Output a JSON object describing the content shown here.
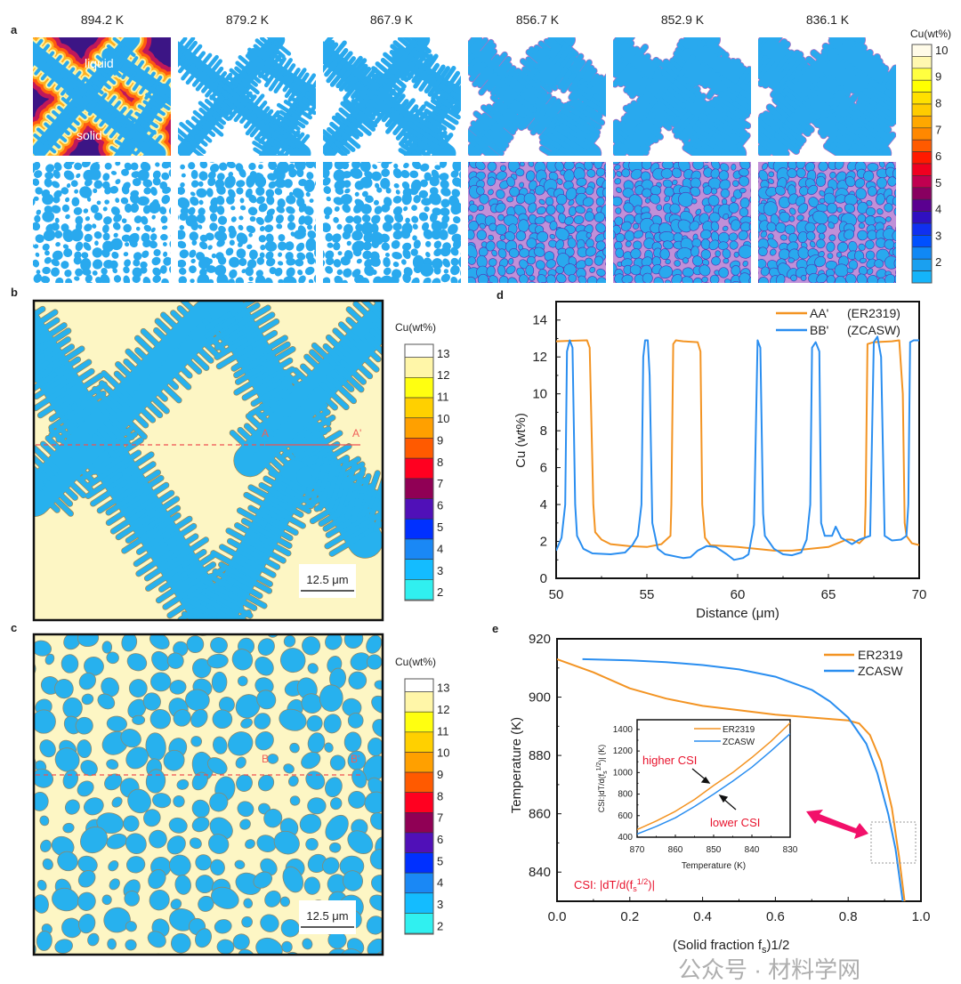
{
  "panel_labels": {
    "a": "a",
    "b": "b",
    "c": "c",
    "d": "d",
    "e": "e"
  },
  "panel_a": {
    "temperatures": [
      "894.2 K",
      "879.2 K",
      "867.9 K",
      "856.7 K",
      "852.9 K",
      "836.1 K"
    ],
    "liquid_label": "liquid",
    "solid_label": "solid",
    "colorbar": {
      "title": "Cu(wt%)",
      "labels": [
        "10",
        "9",
        "8",
        "7",
        "6",
        "5",
        "4",
        "3",
        "2"
      ]
    }
  },
  "panel_b": {
    "line_start": "A",
    "line_end": "A'",
    "scale_bar": "12.5 μm",
    "colorbar": {
      "title": "Cu(wt%)",
      "labels": [
        "13",
        "12",
        "11",
        "10",
        "9",
        "8",
        "7",
        "6",
        "5",
        "4",
        "3",
        "2"
      ]
    }
  },
  "panel_c": {
    "line_start": "B",
    "line_end": "B'",
    "scale_bar": "12.5 μm",
    "colorbar": {
      "title": "Cu(wt%)",
      "labels": [
        "13",
        "12",
        "11",
        "10",
        "9",
        "8",
        "7",
        "6",
        "5",
        "4",
        "3",
        "2"
      ]
    }
  },
  "colors": {
    "er2319": "#f39423",
    "zcasw": "#2a8ef0",
    "annotation": "#e8132d",
    "arrow": "#f2106a"
  },
  "chart_data": [
    {
      "type": "line",
      "panel": "d",
      "xlabel": "Distance (μm)",
      "ylabel": "Cu (wt%)",
      "xlim": [
        50,
        70
      ],
      "ylim": [
        0,
        15
      ],
      "xticks": [
        "50",
        "55",
        "60",
        "65",
        "70"
      ],
      "yticks": [
        "0",
        "2",
        "4",
        "6",
        "8",
        "10",
        "12",
        "14"
      ],
      "legend_position": "top-right",
      "series": [
        {
          "name": "AA'",
          "note": "(ER2319)",
          "color": "#f39423",
          "x": [
            50,
            51.7,
            51.85,
            52.05,
            52.15,
            52.5,
            53,
            54,
            55,
            55.8,
            56.3,
            56.35,
            56.45,
            56.6,
            57,
            57.8,
            57.95,
            58.05,
            58.2,
            58.5,
            60,
            62,
            63,
            65,
            66,
            66.3,
            66.7,
            67,
            67.05,
            67.15,
            67.5,
            68.5,
            68.9,
            69.1,
            69.2,
            69.3,
            69.6,
            70
          ],
          "y": [
            12.85,
            12.9,
            12.5,
            4,
            2.5,
            2.1,
            1.85,
            1.75,
            1.7,
            1.85,
            2.3,
            4,
            12.7,
            12.9,
            12.85,
            12.8,
            12.3,
            4,
            2.2,
            1.8,
            1.7,
            1.5,
            1.5,
            1.7,
            2.1,
            2.1,
            1.9,
            2.2,
            4,
            12.7,
            12.8,
            12.85,
            12.9,
            10,
            3,
            2.3,
            1.9,
            1.8
          ]
        },
        {
          "name": "BB'",
          "note": "(ZCASW)",
          "color": "#2a8ef0",
          "x": [
            50,
            50.3,
            50.5,
            50.6,
            50.75,
            50.9,
            51.05,
            51.15,
            51.5,
            52,
            53,
            53.8,
            54.2,
            54.5,
            54.7,
            54.8,
            54.9,
            55.05,
            55.15,
            55.3,
            55.6,
            56,
            57,
            57.4,
            57.8,
            58.3,
            58.8,
            59.4,
            59.8,
            60.3,
            60.6,
            60.9,
            61.1,
            61.25,
            61.4,
            61.5,
            62,
            62.5,
            63,
            63.5,
            63.8,
            64,
            64.1,
            64.3,
            64.5,
            64.6,
            64.8,
            65.2,
            65.4,
            65.7,
            66.3,
            66.7,
            67.3,
            67.5,
            67.7,
            67.9,
            68.1,
            68.5,
            69,
            69.3,
            69.4,
            69.5,
            69.7,
            70
          ],
          "y": [
            1.5,
            2.2,
            4,
            12.3,
            12.9,
            12.5,
            4,
            2.3,
            1.6,
            1.35,
            1.3,
            1.4,
            1.8,
            2.3,
            4,
            12,
            12.9,
            12.9,
            11,
            3,
            1.6,
            1.3,
            1.1,
            1.15,
            1.5,
            1.75,
            1.7,
            1.3,
            1.0,
            1.1,
            1.3,
            2.9,
            12.9,
            12.5,
            3.5,
            2.3,
            1.6,
            1.3,
            1.25,
            1.4,
            2.1,
            4,
            12.5,
            12.8,
            12.3,
            3,
            2.3,
            2.3,
            2.8,
            2.2,
            1.85,
            2.1,
            2.3,
            12.8,
            13.1,
            12,
            2.3,
            2.05,
            2.1,
            2.3,
            4,
            12.8,
            12.9,
            12.9
          ]
        }
      ]
    },
    {
      "type": "line",
      "panel": "e",
      "xlabel": "(Solid fraction f",
      "xlabel_sub": "s",
      "xlabel_sup": ")1/2",
      "ylabel": "Temperature (K)",
      "xlim": [
        0,
        1
      ],
      "ylim": [
        830,
        920
      ],
      "xticks": [
        "0.0",
        "0.2",
        "0.4",
        "0.6",
        "0.8",
        "1.0"
      ],
      "yticks": [
        "840",
        "860",
        "880",
        "900",
        "920"
      ],
      "legend_position": "top-right",
      "annotation": "CSI: |dT/d(f",
      "annotation_sub": "s",
      "annotation_sup": "1/2",
      "annotation_end": ")|",
      "series": [
        {
          "name": "ER2319",
          "color": "#f39423",
          "x": [
            0,
            0.1,
            0.2,
            0.3,
            0.4,
            0.5,
            0.6,
            0.7,
            0.8,
            0.83,
            0.86,
            0.89,
            0.92,
            0.94,
            0.955
          ],
          "y": [
            913,
            908.5,
            903,
            899.5,
            897,
            895.5,
            894,
            893,
            892,
            891,
            887,
            878,
            862,
            845,
            830
          ]
        },
        {
          "name": "ZCASW",
          "color": "#2a8ef0",
          "x": [
            0.07,
            0.2,
            0.3,
            0.4,
            0.5,
            0.6,
            0.7,
            0.75,
            0.8,
            0.85,
            0.88,
            0.91,
            0.93,
            0.95
          ],
          "y": [
            913,
            912.6,
            912,
            911,
            909.5,
            907,
            902.5,
            898.5,
            893,
            884,
            874,
            860,
            848,
            830
          ]
        }
      ]
    },
    {
      "type": "line",
      "panel": "e-inset",
      "xlabel": "Temperature (K)",
      "ylabel": "CSI:|dT/d(f",
      "ylabel_sub": "s",
      "ylabel_sup": "1/2",
      "ylabel_end": ")| (K)",
      "xlim": [
        870,
        830
      ],
      "ylim": [
        400,
        1490
      ],
      "xticks": [
        "870",
        "860",
        "850",
        "840",
        "830"
      ],
      "yticks": [
        "400",
        "600",
        "800",
        "1000",
        "1200",
        "1400"
      ],
      "legend_position": "top-right",
      "higher_label": "higher  CSI",
      "lower_label": "lower  CSI",
      "series": [
        {
          "name": "ER2319",
          "color": "#f39423",
          "x": [
            870,
            865,
            860,
            855,
            850,
            845,
            840,
            835,
            830
          ],
          "y": [
            470,
            550,
            640,
            750,
            880,
            1000,
            1140,
            1290,
            1460
          ]
        },
        {
          "name": "ZCASW",
          "color": "#2a8ef0",
          "x": [
            870,
            865,
            860,
            855,
            850,
            845,
            840,
            835,
            830
          ],
          "y": [
            430,
            500,
            580,
            685,
            800,
            920,
            1050,
            1200,
            1360
          ]
        }
      ]
    }
  ],
  "watermark": "公众号 · 材料学网"
}
